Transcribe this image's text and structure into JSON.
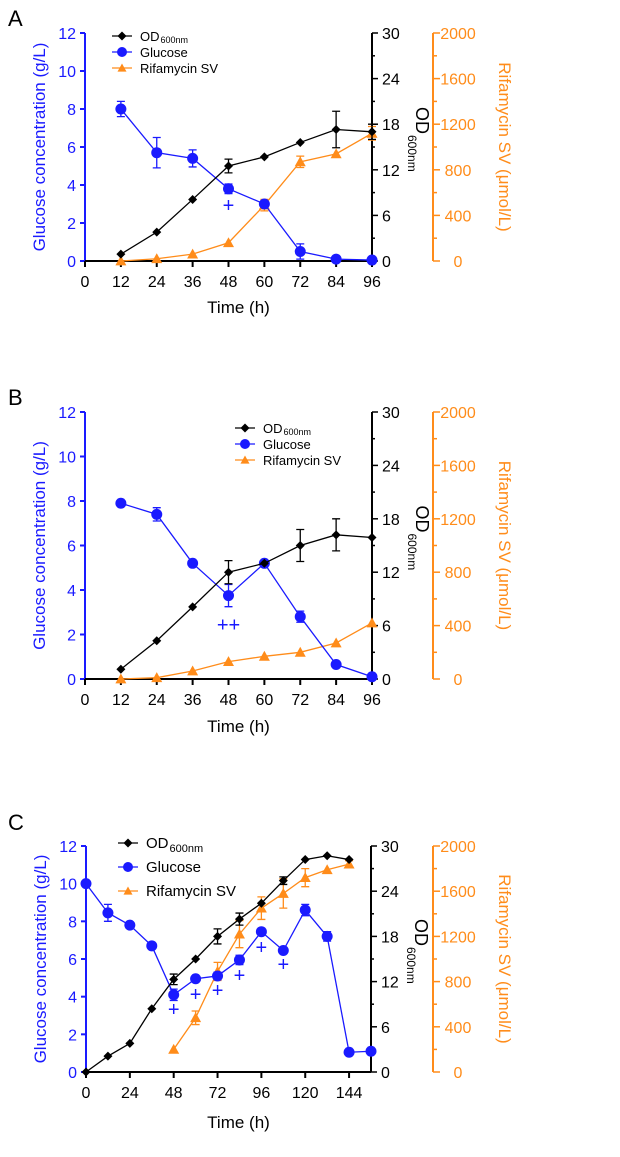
{
  "chart_data": [
    {
      "panel_label": "A",
      "type": "line",
      "xlabel": "Time (h)",
      "xlim": [
        0,
        96
      ],
      "xticks": [
        0,
        12,
        24,
        36,
        48,
        60,
        72,
        84,
        96
      ],
      "y_left": {
        "label": "Glucose concentration (g/L)",
        "lim": [
          0,
          12
        ],
        "ticks": [
          0,
          2,
          4,
          6,
          8,
          10,
          12
        ],
        "color": "#1a1aff"
      },
      "y_right1": {
        "label": "OD",
        "label_sub": "600nm",
        "lim": [
          0,
          30
        ],
        "ticks": [
          0,
          6,
          12,
          18,
          24,
          30
        ],
        "color": "#000000"
      },
      "y_right2": {
        "label": "Rifamycin SV (μmol/L)",
        "lim": [
          0,
          2000
        ],
        "ticks": [
          0,
          400,
          800,
          1200,
          1600,
          2000
        ],
        "color": "#ff8c1a"
      },
      "legend_position": "top-left",
      "series": [
        {
          "name": "OD",
          "name_sub": "600nm",
          "axis": "right1",
          "marker": "diamond",
          "color": "#000000",
          "x": [
            12,
            24,
            36,
            48,
            60,
            72,
            84,
            96
          ],
          "y": [
            0.9,
            3.8,
            8.1,
            12.5,
            13.7,
            15.6,
            17.3,
            17.0
          ],
          "err": [
            0,
            0,
            0,
            0.9,
            0,
            0,
            2.4,
            1.0
          ]
        },
        {
          "name": "Glucose",
          "axis": "left",
          "marker": "circle",
          "color": "#1a1aff",
          "x": [
            12,
            24,
            36,
            48,
            60,
            72,
            84,
            96
          ],
          "y": [
            8.0,
            5.7,
            5.4,
            3.8,
            3.0,
            0.5,
            0.1,
            0.05
          ],
          "err": [
            0.4,
            0.8,
            0.45,
            0.25,
            0.15,
            0.4,
            0,
            0
          ]
        },
        {
          "name": "Rifamycin SV",
          "axis": "right2",
          "marker": "triangle",
          "color": "#ff8c1a",
          "x": [
            12,
            24,
            36,
            48,
            60,
            72,
            84,
            96
          ],
          "y": [
            0,
            20,
            60,
            160,
            490,
            870,
            940,
            1120
          ],
          "err": [
            0,
            0,
            0,
            0,
            50,
            50,
            0,
            60
          ]
        }
      ],
      "annotations": [
        {
          "text": "+",
          "x": 48,
          "y": 3.0
        }
      ]
    },
    {
      "panel_label": "B",
      "type": "line",
      "xlabel": "Time (h)",
      "xlim": [
        0,
        96
      ],
      "xticks": [
        0,
        12,
        24,
        36,
        48,
        60,
        72,
        84,
        96
      ],
      "y_left": {
        "label": "Glucose concentration (g/L)",
        "lim": [
          0,
          12
        ],
        "ticks": [
          0,
          2,
          4,
          6,
          8,
          10,
          12
        ],
        "color": "#1a1aff"
      },
      "y_right1": {
        "label": "OD",
        "label_sub": "600nm",
        "lim": [
          0,
          30
        ],
        "ticks": [
          0,
          6,
          12,
          18,
          24,
          30
        ],
        "color": "#000000"
      },
      "y_right2": {
        "label": "Rifamycin SV (μmol/L)",
        "lim": [
          0,
          2000
        ],
        "ticks": [
          0,
          400,
          800,
          1200,
          1600,
          2000
        ],
        "color": "#ff8c1a"
      },
      "legend_position": "top-right",
      "series": [
        {
          "name": "OD",
          "name_sub": "600nm",
          "axis": "right1",
          "marker": "diamond",
          "color": "#000000",
          "x": [
            12,
            24,
            36,
            48,
            60,
            72,
            84,
            96
          ],
          "y": [
            1.1,
            4.3,
            8.1,
            12.0,
            13.0,
            15.0,
            16.2,
            15.9
          ],
          "err": [
            0,
            0,
            0,
            1.3,
            0,
            1.8,
            1.8,
            0
          ]
        },
        {
          "name": "Glucose",
          "axis": "left",
          "marker": "circle",
          "color": "#1a1aff",
          "x": [
            12,
            24,
            36,
            48,
            60,
            72,
            84,
            96
          ],
          "y": [
            7.9,
            7.4,
            5.2,
            3.75,
            5.2,
            2.8,
            0.65,
            0.1
          ],
          "err": [
            0,
            0.3,
            0,
            0.5,
            0,
            0.25,
            0,
            0
          ]
        },
        {
          "name": "Rifamycin SV",
          "axis": "right2",
          "marker": "triangle",
          "color": "#ff8c1a",
          "x": [
            12,
            24,
            36,
            48,
            60,
            72,
            84,
            96
          ],
          "y": [
            0,
            10,
            60,
            130,
            170,
            200,
            270,
            420
          ],
          "err": [
            0,
            0,
            0,
            0,
            0,
            0,
            0,
            0
          ]
        }
      ],
      "annotations": [
        {
          "text": "++",
          "x": 48,
          "y": 2.5
        }
      ]
    },
    {
      "panel_label": "C",
      "type": "line",
      "xlabel": "Time (h)",
      "xlim": [
        0,
        156
      ],
      "xticks": [
        0,
        24,
        48,
        72,
        96,
        120,
        144
      ],
      "y_left": {
        "label": "Glucose concentration (g/L)",
        "lim": [
          0,
          12
        ],
        "ticks": [
          0,
          2,
          4,
          6,
          8,
          10,
          12
        ],
        "color": "#1a1aff"
      },
      "y_right1": {
        "label": "OD",
        "label_sub": "600nm",
        "lim": [
          0,
          30
        ],
        "ticks": [
          0,
          6,
          12,
          18,
          24,
          30
        ],
        "color": "#000000"
      },
      "y_right2": {
        "label": "Rifamycin SV (μmol/L)",
        "lim": [
          0,
          2000
        ],
        "ticks": [
          0,
          400,
          800,
          1200,
          1600,
          2000
        ],
        "color": "#ff8c1a"
      },
      "legend_position": "top-left",
      "series": [
        {
          "name": "OD",
          "name_sub": "600nm",
          "axis": "right1",
          "marker": "diamond",
          "color": "#000000",
          "x": [
            0,
            12,
            24,
            36,
            48,
            60,
            72,
            84,
            96,
            108,
            120,
            132,
            144
          ],
          "y": [
            0,
            2.1,
            3.8,
            8.4,
            12.3,
            15.0,
            18.0,
            20.3,
            22.4,
            25.4,
            28.2,
            28.7,
            28.2
          ],
          "err": [
            0,
            0,
            0,
            0,
            0.7,
            0,
            1.0,
            0.8,
            0,
            0.5,
            0,
            0,
            0
          ]
        },
        {
          "name": "Glucose",
          "axis": "left",
          "marker": "circle",
          "color": "#1a1aff",
          "x": [
            0,
            12,
            24,
            36,
            48,
            60,
            72,
            84,
            96,
            108,
            120,
            132,
            144,
            156
          ],
          "y": [
            10.0,
            8.45,
            7.8,
            6.7,
            4.1,
            4.95,
            5.1,
            5.95,
            7.45,
            6.45,
            8.6,
            7.2,
            1.05,
            1.1
          ],
          "err": [
            0,
            0.45,
            0,
            0,
            0.3,
            0,
            0.2,
            0.25,
            0,
            0,
            0.3,
            0.25,
            0,
            0
          ]
        },
        {
          "name": "Rifamycin SV",
          "axis": "right2",
          "marker": "triangle",
          "color": "#ff8c1a",
          "x": [
            48,
            60,
            72,
            84,
            96,
            108,
            120,
            132,
            144
          ],
          "y": [
            200,
            480,
            890,
            1220,
            1450,
            1580,
            1720,
            1790,
            1840
          ],
          "err": [
            0,
            60,
            80,
            120,
            100,
            130,
            80,
            0,
            30
          ]
        }
      ],
      "annotations": [
        {
          "text": "+",
          "x": 48,
          "y": 3.4
        },
        {
          "text": "+",
          "x": 60,
          "y": 4.2
        },
        {
          "text": "+",
          "x": 72,
          "y": 4.4
        },
        {
          "text": "+",
          "x": 84,
          "y": 5.2
        },
        {
          "text": "+",
          "x": 96,
          "y": 6.7
        },
        {
          "text": "+",
          "x": 108,
          "y": 5.8
        }
      ]
    }
  ]
}
